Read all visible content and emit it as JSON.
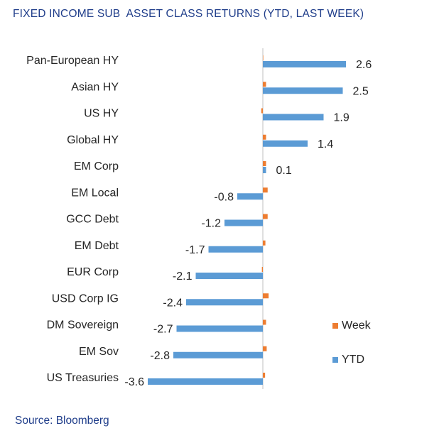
{
  "chart_data": {
    "type": "bar",
    "orientation": "horizontal",
    "title": "FIXED INCOME SUB  ASSET CLASS RETURNS (YTD, LAST WEEK)",
    "categories": [
      "Pan-European HY",
      "Asian HY",
      "US HY",
      "Global HY",
      "EM Corp",
      "EM Local",
      "GCC Debt",
      "EM Debt",
      "EUR Corp",
      "USD Corp IG",
      "DM Sovereign",
      "EM Sov",
      "US Treasuries"
    ],
    "series": [
      {
        "name": "Week",
        "color": "#ed7d31",
        "values": [
          0.0,
          0.1,
          -0.05,
          0.1,
          0.1,
          0.15,
          0.15,
          0.08,
          -0.03,
          0.18,
          0.1,
          0.12,
          0.07
        ]
      },
      {
        "name": "YTD",
        "color": "#5b9bd5",
        "values": [
          2.6,
          2.5,
          1.9,
          1.4,
          0.1,
          -0.8,
          -1.2,
          -1.7,
          -2.1,
          -2.4,
          -2.7,
          -2.8,
          -3.6
        ]
      }
    ],
    "data_labels": [
      "2.6",
      "2.5",
      "1.9",
      "1.4",
      "0.1",
      "-0.8",
      "-1.2",
      "-1.7",
      "-2.1",
      "-2.4",
      "-2.7",
      "-2.8",
      "-3.6"
    ],
    "xlim": [
      -3.6,
      2.6
    ],
    "legend_position": "right",
    "grid": false
  },
  "source": "Source: Bloomberg"
}
